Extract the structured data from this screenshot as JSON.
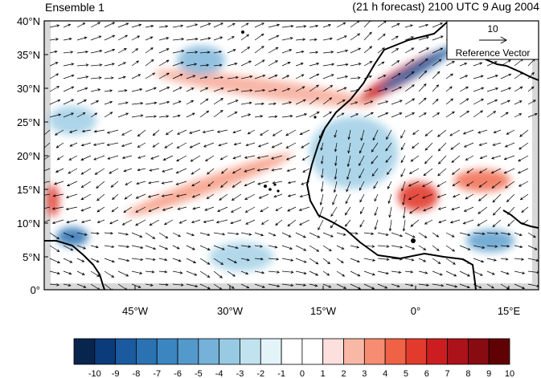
{
  "header": {
    "left_title": "Ensemble 1",
    "right_title": "(21 h forecast) 2100 UTC 9 Aug 2004"
  },
  "map": {
    "lat_ticks": [
      "40°N",
      "35°N",
      "30°N",
      "25°N",
      "20°N",
      "15°N",
      "10°N",
      "5°N",
      "0°"
    ],
    "lon_ticks": [
      "45°W",
      "30°W",
      "15°W",
      "0°",
      "15°E"
    ]
  },
  "reference_vector": {
    "magnitude_label": "10",
    "caption": "Reference Vector"
  },
  "colorbar": {
    "labels": [
      "-10",
      "-9",
      "-8",
      "-7",
      "-6",
      "-5",
      "-4",
      "-3",
      "-2",
      "-1",
      "0",
      "1",
      "2",
      "3",
      "4",
      "5",
      "6",
      "7",
      "8",
      "9",
      "10"
    ],
    "colors": [
      "#08254e",
      "#0c3b7b",
      "#1b5a9e",
      "#2b72b3",
      "#3b86c1",
      "#5499cb",
      "#75b1d8",
      "#98cbe3",
      "#c1e3ef",
      "#e3f4f9",
      "#ffffff",
      "#ffffff",
      "#fde0dd",
      "#f9b8a6",
      "#f68d72",
      "#f06245",
      "#e23b2d",
      "#cc1e20",
      "#ac1219",
      "#880b12",
      "#600205"
    ]
  }
}
